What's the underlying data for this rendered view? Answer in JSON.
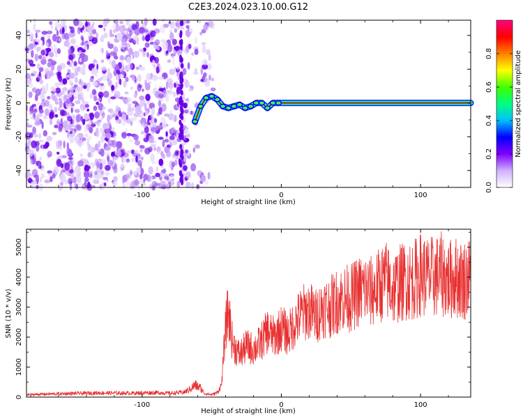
{
  "figure_title": "C2E3.2024.023.10.00.G12",
  "colors": {
    "snr_line": "#e83030",
    "spectral_line": "#222222",
    "noise_dark": "#6a00e8",
    "noise_light": "#d8c0f8"
  },
  "chart_data": [
    {
      "type": "heatmap",
      "xlabel": "Height of straight line (km)",
      "ylabel": "Frequency (Hz)",
      "xlim": [
        -183,
        136
      ],
      "ylim": [
        -50,
        49
      ],
      "xticks": [
        -100,
        0,
        100
      ],
      "xtick_labels": [
        "-100",
        "0",
        "100"
      ],
      "yticks": [
        -40,
        -20,
        0,
        20,
        40
      ],
      "ytick_labels": [
        "-40",
        "-20",
        "0",
        "20",
        "40"
      ],
      "grid": false,
      "description_trace": {
        "name": "",
        "x": [
          -62,
          -58,
          -54,
          -50,
          -46,
          -42,
          -38,
          -34,
          -30,
          -26,
          -22,
          -18,
          -14,
          -10,
          -6,
          -2,
          2,
          8,
          15,
          25,
          136
        ],
        "y": [
          -11,
          -2,
          3,
          4,
          2,
          -2,
          -3,
          -2,
          -1,
          -3,
          -2,
          0,
          0,
          -3,
          0,
          0,
          0,
          0,
          0,
          0,
          0
        ]
      },
      "colorbar": {
        "label": "Normalized spectral amplitude",
        "range": [
          0,
          1
        ],
        "ticks": [
          0.0,
          0.2,
          0.4,
          0.6,
          0.8
        ],
        "tick_labels": [
          "0.0",
          "0.2",
          "0.4",
          "0.6",
          "0.8"
        ],
        "colormap": [
          "#ffffff",
          "#d0b0ff",
          "#8000ff",
          "#0000ff",
          "#00c0ff",
          "#00ff80",
          "#40ff00",
          "#ffff00",
          "#ff8000",
          "#ff0000",
          "#ff0080"
        ]
      },
      "noise_region_x": [
        -183,
        -55
      ]
    },
    {
      "type": "line",
      "xlabel": "Height of straight line (km)",
      "ylabel": "SNR (10 * v/v)",
      "xlim": [
        -183,
        136
      ],
      "ylim": [
        0,
        5600
      ],
      "xticks": [
        -100,
        0,
        100
      ],
      "xtick_labels": [
        "-100",
        "0",
        "100"
      ],
      "yticks": [
        0,
        1000,
        2000,
        3000,
        4000,
        5000
      ],
      "ytick_labels": [
        "0",
        "1000",
        "2000",
        "3000",
        "4000",
        "5000"
      ],
      "grid": false,
      "series": [
        {
          "name": "",
          "x": [
            -183,
            -170,
            -150,
            -130,
            -110,
            -100,
            -90,
            -80,
            -70,
            -66,
            -62,
            -58,
            -55,
            -50,
            -46,
            -43,
            -40,
            -38,
            -35,
            -30,
            -25,
            -20,
            -15,
            -10,
            -5,
            0,
            5,
            10,
            15,
            20,
            25,
            30,
            35,
            40,
            45,
            50,
            55,
            60,
            65,
            70,
            75,
            80,
            85,
            90,
            95,
            100,
            105,
            110,
            115,
            120,
            125,
            130,
            136
          ],
          "y": [
            80,
            100,
            120,
            140,
            130,
            140,
            150,
            130,
            160,
            250,
            400,
            300,
            120,
            80,
            150,
            400,
            2300,
            2900,
            1800,
            1400,
            1700,
            1600,
            1800,
            2200,
            2000,
            2300,
            2100,
            2500,
            2800,
            2900,
            2700,
            3000,
            3000,
            3200,
            3300,
            3300,
            3500,
            3600,
            3500,
            3700,
            3900,
            3600,
            3800,
            3900,
            3900,
            4100,
            4000,
            4000,
            4100,
            3900,
            4000,
            3900,
            4000
          ]
        }
      ]
    }
  ]
}
